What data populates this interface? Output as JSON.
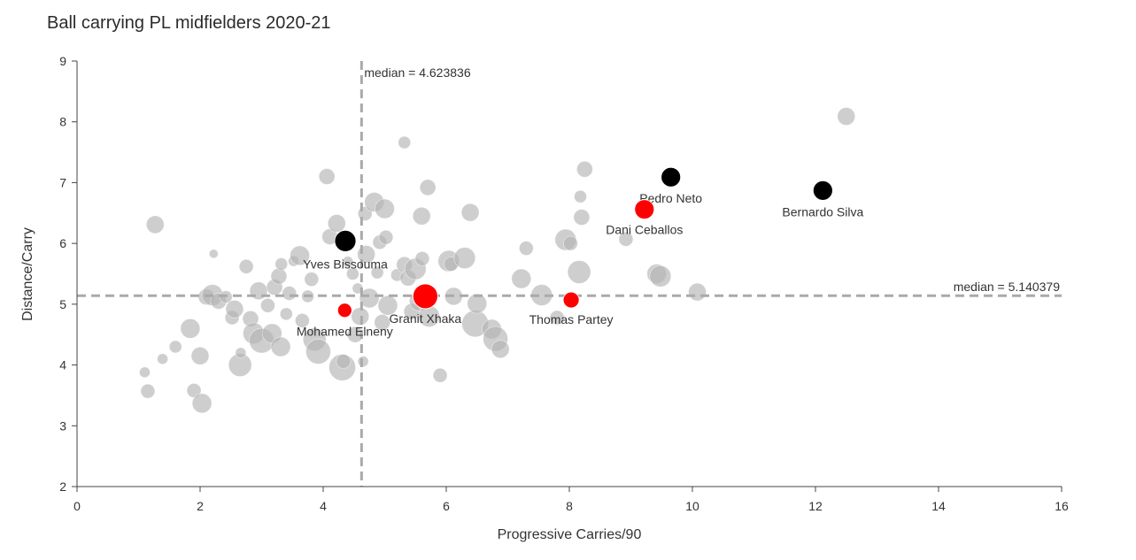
{
  "chart_data": {
    "type": "scatter",
    "title": "Ball carrying PL midfielders 2020-21",
    "xlabel": "Progressive Carries/90",
    "ylabel": "Distance/Carry",
    "xlim": [
      0,
      16
    ],
    "ylim": [
      2,
      9
    ],
    "xticks": [
      "0",
      "2",
      "4",
      "6",
      "8",
      "10",
      "12",
      "14",
      "16"
    ],
    "yticks": [
      "2",
      "3",
      "4",
      "5",
      "6",
      "7",
      "8",
      "9"
    ],
    "grid": false,
    "colors": {
      "other": "#b3b3b3",
      "arsenal": "#ff0000",
      "brighton_wolves_city": "#000000",
      "median_line": "#aaaaaa"
    },
    "median_x": {
      "value": 4.623836,
      "label": "median = 4.623836"
    },
    "median_y": {
      "value": 5.140379,
      "label": "median = 5.140379"
    },
    "highlighted": [
      {
        "name": "Pedro Neto",
        "x": 9.65,
        "y": 7.09,
        "color": "#000000",
        "size": 11
      },
      {
        "name": "Bernardo Silva",
        "x": 12.12,
        "y": 6.87,
        "color": "#000000",
        "size": 11
      },
      {
        "name": "Yves Bissouma",
        "x": 4.36,
        "y": 6.04,
        "color": "#000000",
        "size": 12
      },
      {
        "name": "Dani Ceballos",
        "x": 9.22,
        "y": 6.56,
        "color": "#ff0000",
        "size": 11
      },
      {
        "name": "Thomas Partey",
        "x": 8.03,
        "y": 5.07,
        "color": "#ff0000",
        "size": 9
      },
      {
        "name": "Granit Xhaka",
        "x": 5.66,
        "y": 5.13,
        "color": "#ff0000",
        "size": 14
      },
      {
        "name": "Mohamed Elneny",
        "x": 4.35,
        "y": 4.9,
        "color": "#ff0000",
        "size": 8
      }
    ],
    "others": [
      [
        1.1,
        3.88,
        6
      ],
      [
        1.15,
        3.57,
        8
      ],
      [
        1.27,
        6.31,
        10
      ],
      [
        1.39,
        4.1,
        6
      ],
      [
        1.6,
        4.3,
        7
      ],
      [
        1.84,
        4.6,
        11
      ],
      [
        1.9,
        3.58,
        8
      ],
      [
        2.0,
        4.15,
        10
      ],
      [
        2.03,
        3.37,
        11
      ],
      [
        2.1,
        5.12,
        9
      ],
      [
        2.2,
        5.15,
        12
      ],
      [
        2.22,
        5.83,
        5
      ],
      [
        2.3,
        5.05,
        9
      ],
      [
        2.42,
        5.12,
        7
      ],
      [
        2.52,
        4.78,
        8
      ],
      [
        2.56,
        4.92,
        10
      ],
      [
        2.65,
        4.0,
        13
      ],
      [
        2.66,
        4.2,
        6
      ],
      [
        2.75,
        5.62,
        8
      ],
      [
        2.82,
        4.76,
        9
      ],
      [
        2.87,
        4.52,
        12
      ],
      [
        2.95,
        5.22,
        10
      ],
      [
        3.0,
        4.4,
        14
      ],
      [
        3.1,
        4.98,
        8
      ],
      [
        3.17,
        4.52,
        11
      ],
      [
        3.21,
        5.28,
        9
      ],
      [
        3.28,
        5.46,
        9
      ],
      [
        3.32,
        5.66,
        7
      ],
      [
        3.31,
        4.3,
        11
      ],
      [
        3.4,
        4.84,
        7
      ],
      [
        3.45,
        5.18,
        8
      ],
      [
        3.52,
        5.71,
        6
      ],
      [
        3.62,
        5.8,
        11
      ],
      [
        3.66,
        4.73,
        8
      ],
      [
        3.75,
        5.13,
        7
      ],
      [
        3.81,
        5.41,
        8
      ],
      [
        3.86,
        4.42,
        13
      ],
      [
        3.92,
        4.22,
        14
      ],
      [
        4.06,
        7.1,
        9
      ],
      [
        4.11,
        6.11,
        9
      ],
      [
        4.22,
        6.33,
        10
      ],
      [
        4.31,
        3.96,
        15
      ],
      [
        4.33,
        4.06,
        8
      ],
      [
        4.4,
        5.7,
        6
      ],
      [
        4.48,
        5.5,
        7
      ],
      [
        4.52,
        4.5,
        9
      ],
      [
        4.56,
        5.26,
        6
      ],
      [
        4.6,
        4.8,
        10
      ],
      [
        4.65,
        4.06,
        6
      ],
      [
        4.7,
        5.82,
        10
      ],
      [
        4.68,
        6.49,
        8
      ],
      [
        4.75,
        5.1,
        11
      ],
      [
        4.83,
        6.68,
        11
      ],
      [
        4.88,
        5.52,
        7
      ],
      [
        4.92,
        6.02,
        8
      ],
      [
        4.96,
        4.7,
        9
      ],
      [
        5.0,
        6.57,
        11
      ],
      [
        5.02,
        6.1,
        8
      ],
      [
        5.05,
        4.98,
        11
      ],
      [
        5.2,
        5.48,
        7
      ],
      [
        5.32,
        7.66,
        7
      ],
      [
        5.32,
        5.65,
        9
      ],
      [
        5.38,
        5.43,
        9
      ],
      [
        5.44,
        4.88,
        9
      ],
      [
        5.5,
        5.58,
        12
      ],
      [
        5.56,
        5.05,
        11
      ],
      [
        5.6,
        6.45,
        10
      ],
      [
        5.61,
        5.75,
        8
      ],
      [
        5.7,
        6.92,
        9
      ],
      [
        5.72,
        4.8,
        12
      ],
      [
        5.9,
        3.83,
        8
      ],
      [
        6.04,
        5.71,
        12
      ],
      [
        6.08,
        5.66,
        8
      ],
      [
        6.12,
        5.13,
        10
      ],
      [
        6.3,
        5.76,
        12
      ],
      [
        6.39,
        6.51,
        10
      ],
      [
        6.47,
        4.68,
        15
      ],
      [
        6.5,
        5.01,
        11
      ],
      [
        6.74,
        4.59,
        11
      ],
      [
        6.8,
        4.43,
        14
      ],
      [
        6.88,
        4.26,
        10
      ],
      [
        7.22,
        5.42,
        11
      ],
      [
        7.3,
        5.92,
        8
      ],
      [
        7.55,
        5.15,
        12
      ],
      [
        7.8,
        4.78,
        8
      ],
      [
        7.94,
        6.06,
        12
      ],
      [
        8.02,
        6.0,
        8
      ],
      [
        8.16,
        5.53,
        13
      ],
      [
        8.18,
        6.77,
        7
      ],
      [
        8.2,
        6.43,
        9
      ],
      [
        8.25,
        7.22,
        9
      ],
      [
        8.92,
        6.07,
        8
      ],
      [
        9.42,
        5.5,
        11
      ],
      [
        9.48,
        5.46,
        12
      ],
      [
        10.08,
        5.2,
        10
      ],
      [
        12.5,
        8.09,
        10
      ]
    ]
  }
}
